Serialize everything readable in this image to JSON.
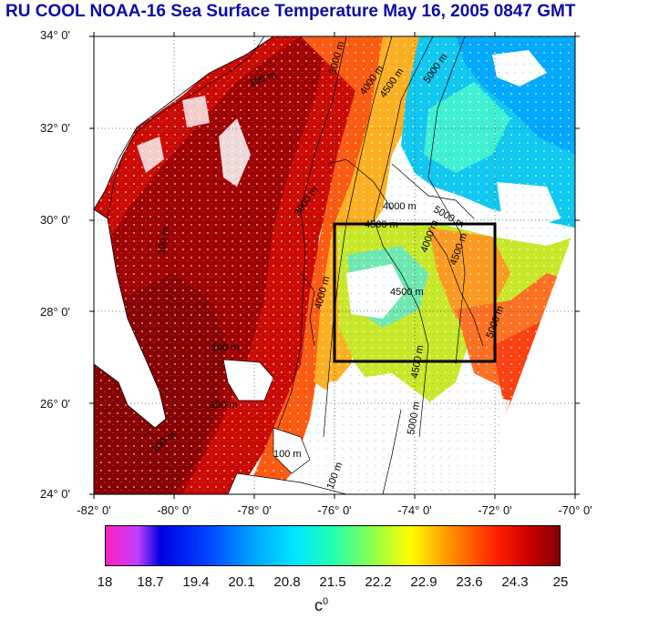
{
  "title": "RU COOL  NOAA-16 Sea Surface Temperature May 16, 2005 0847 GMT",
  "y_axis_labels": [
    "34° 0'",
    "32° 0'",
    "30° 0'",
    "28° 0'",
    "26° 0'",
    "24° 0'"
  ],
  "x_axis_labels": [
    "-82° 0'",
    "-80° 0'",
    "-78° 0'",
    "-76° 0'",
    "-74° 0'",
    "-72° 0'",
    "-70° 0'"
  ],
  "colorbar": {
    "tick_labels": [
      "18",
      "18.7",
      "19.4",
      "20.1",
      "20.8",
      "21.5",
      "22.2",
      "22.9",
      "23.6",
      "24.3",
      "25"
    ],
    "unit": "c",
    "unit_superscript": "0",
    "min": 18,
    "max": 25
  },
  "contour_labels": [
    "3000 m",
    "4000 m",
    "4500 m",
    "5000 m",
    "100 m",
    "100 m",
    "3000 m",
    "4000 m",
    "4500 m",
    "5000 m",
    "4000 m",
    "4500 m",
    "4500 m",
    "5000 m",
    "4000 m",
    "100 m",
    "100 m",
    "100 m",
    "100 m",
    "100 m",
    "4500 m",
    "5000 m"
  ],
  "study_box": {
    "lon": [
      -76,
      -72
    ],
    "lat": [
      27,
      30
    ]
  },
  "colors": {
    "title": "#0c0ca8",
    "land": "#ffffff",
    "box": "#000000"
  }
}
